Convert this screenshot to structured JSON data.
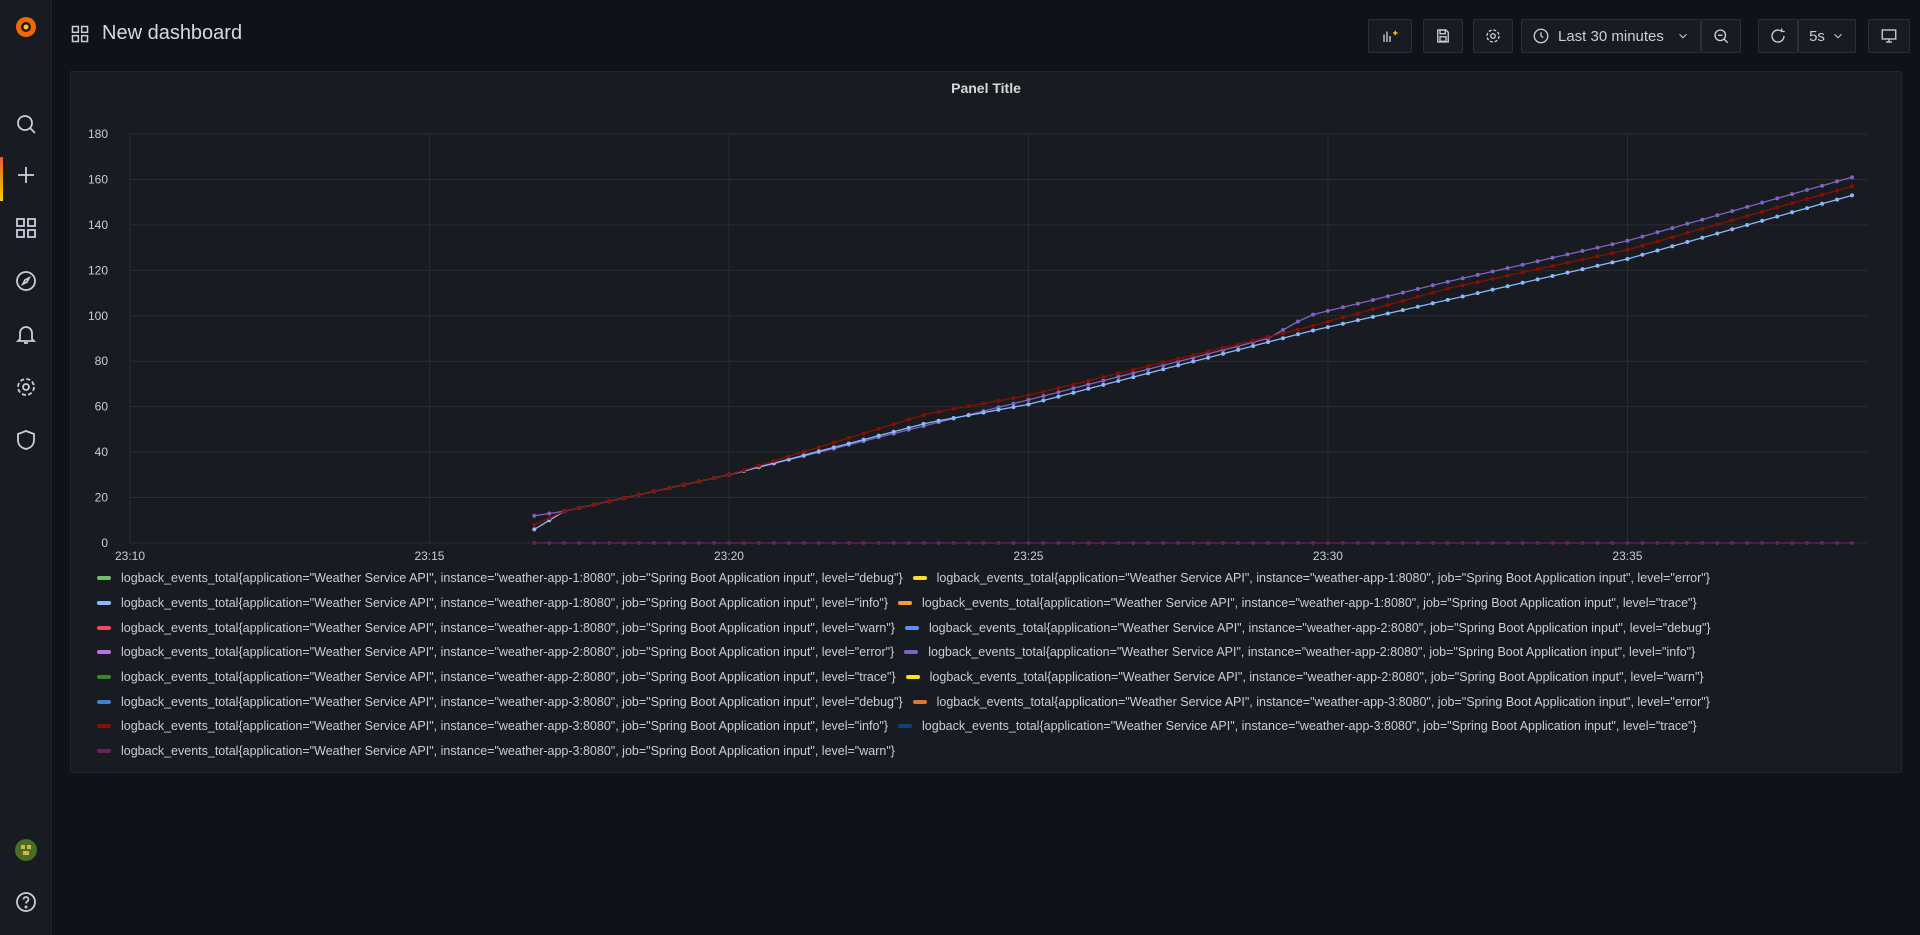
{
  "dashboard": {
    "title": "New dashboard"
  },
  "toolbar": {
    "add_panel_icon": "add-panel-icon",
    "save_icon": "save-icon",
    "settings_icon": "gear-icon",
    "time_range_label": "Last 30 minutes",
    "zoom_out_icon": "zoom-out-icon",
    "refresh_icon": "refresh-icon",
    "refresh_interval": "5s",
    "tv_mode_icon": "monitor-icon"
  },
  "sidebar": {
    "items": [
      {
        "icon": "grafana-logo-icon"
      },
      {
        "icon": "search-icon"
      },
      {
        "icon": "plus-icon",
        "active": true
      },
      {
        "icon": "dashboards-icon"
      },
      {
        "icon": "explore-icon"
      },
      {
        "icon": "bell-icon"
      },
      {
        "icon": "gear-icon"
      },
      {
        "icon": "shield-icon"
      },
      {
        "icon": "avatar"
      },
      {
        "icon": "help-icon"
      }
    ]
  },
  "panel": {
    "title": "Panel Title",
    "legend": [
      {
        "label": "logback_events_total{application=\"Weather Service API\", instance=\"weather-app-1:8080\", job=\"Spring Boot Application input\", level=\"debug\"}",
        "color": "#73bf69"
      },
      {
        "label": "logback_events_total{application=\"Weather Service API\", instance=\"weather-app-1:8080\", job=\"Spring Boot Application input\", level=\"error\"}",
        "color": "#fade2a"
      },
      {
        "label": "logback_events_total{application=\"Weather Service API\", instance=\"weather-app-1:8080\", job=\"Spring Boot Application input\", level=\"info\"}",
        "color": "#8ab8ff"
      },
      {
        "label": "logback_events_total{application=\"Weather Service API\", instance=\"weather-app-1:8080\", job=\"Spring Boot Application input\", level=\"trace\"}",
        "color": "#ff9830"
      },
      {
        "label": "logback_events_total{application=\"Weather Service API\", instance=\"weather-app-1:8080\", job=\"Spring Boot Application input\", level=\"warn\"}",
        "color": "#f2495c"
      },
      {
        "label": "logback_events_total{application=\"Weather Service API\", instance=\"weather-app-2:8080\", job=\"Spring Boot Application input\", level=\"debug\"}",
        "color": "#5794f2"
      },
      {
        "label": "logback_events_total{application=\"Weather Service API\", instance=\"weather-app-2:8080\", job=\"Spring Boot Application input\", level=\"error\"}",
        "color": "#b877d9"
      },
      {
        "label": "logback_events_total{application=\"Weather Service API\", instance=\"weather-app-2:8080\", job=\"Spring Boot Application input\", level=\"info\"}",
        "color": "#7d63c2"
      },
      {
        "label": "logback_events_total{application=\"Weather Service API\", instance=\"weather-app-2:8080\", job=\"Spring Boot Application input\", level=\"trace\"}",
        "color": "#37872d"
      },
      {
        "label": "logback_events_total{application=\"Weather Service API\", instance=\"weather-app-2:8080\", job=\"Spring Boot Application input\", level=\"warn\"}",
        "color": "#fade2a"
      },
      {
        "label": "logback_events_total{application=\"Weather Service API\", instance=\"weather-app-3:8080\", job=\"Spring Boot Application input\", level=\"debug\"}",
        "color": "#3f7fd3"
      },
      {
        "label": "logback_events_total{application=\"Weather Service API\", instance=\"weather-app-3:8080\", job=\"Spring Boot Application input\", level=\"error\"}",
        "color": "#e0752d"
      },
      {
        "label": "logback_events_total{application=\"Weather Service API\", instance=\"weather-app-3:8080\", job=\"Spring Boot Application input\", level=\"info\"}",
        "color": "#890f02"
      },
      {
        "label": "logback_events_total{application=\"Weather Service API\", instance=\"weather-app-3:8080\", job=\"Spring Boot Application input\", level=\"trace\"}",
        "color": "#0a437c"
      },
      {
        "label": "logback_events_total{application=\"Weather Service API\", instance=\"weather-app-3:8080\", job=\"Spring Boot Application input\", level=\"warn\"}",
        "color": "#6d1f62"
      }
    ]
  },
  "chart_data": {
    "type": "line",
    "title": "Panel Title",
    "xlabel": "",
    "ylabel": "",
    "x_ticks": [
      "23:10",
      "23:15",
      "23:20",
      "23:25",
      "23:30",
      "23:35"
    ],
    "y_ticks": [
      0,
      20,
      40,
      60,
      80,
      100,
      120,
      140,
      160,
      180
    ],
    "ylim": [
      0,
      180
    ],
    "xlim": [
      "23:10",
      "23:39"
    ],
    "grid": true,
    "legend_position": "bottom",
    "series": [
      {
        "name": "logback_events_total{application=\"Weather Service API\", instance=\"weather-app-2:8080\", job=\"Spring Boot Application input\", level=\"info\"}",
        "color": "#7d63c2",
        "points": [
          [
            "23:16:45",
            12
          ],
          [
            "23:17:00",
            13
          ],
          [
            "23:17:15",
            14
          ],
          [
            "23:20:00",
            30
          ],
          [
            "23:25:00",
            63
          ],
          [
            "23:29:00",
            90
          ],
          [
            "23:29:40",
            100
          ],
          [
            "23:32:00",
            115
          ],
          [
            "23:35:00",
            133
          ],
          [
            "23:38:45",
            161
          ]
        ]
      },
      {
        "name": "logback_events_total{application=\"Weather Service API\", instance=\"weather-app-1:8080\", job=\"Spring Boot Application input\", level=\"info\"}",
        "color": "#8ab8ff",
        "points": [
          [
            "23:16:45",
            6
          ],
          [
            "23:17:15",
            14
          ],
          [
            "23:20:00",
            30
          ],
          [
            "23:23:20",
            53
          ],
          [
            "23:25:00",
            61
          ],
          [
            "23:29:40",
            93
          ],
          [
            "23:32:00",
            107
          ],
          [
            "23:35:00",
            125
          ],
          [
            "23:38:45",
            153
          ]
        ]
      },
      {
        "name": "logback_events_total{application=\"Weather Service API\", instance=\"weather-app-3:8080\", job=\"Spring Boot Application input\", level=\"info\"}",
        "color": "#890f02",
        "points": [
          [
            "23:16:45",
            8
          ],
          [
            "23:17:15",
            14
          ],
          [
            "23:20:00",
            30
          ],
          [
            "23:23:20",
            57
          ],
          [
            "23:25:00",
            65
          ],
          [
            "23:29:40",
            95
          ],
          [
            "23:32:00",
            112
          ],
          [
            "23:35:00",
            129
          ],
          [
            "23:38:45",
            157
          ]
        ]
      },
      {
        "name": "logback_events_total{application=\"Weather Service API\", instance=\"weather-app-3:8080\", job=\"Spring Boot Application input\", level=\"warn\"}",
        "color": "#6d1f62",
        "points": [
          [
            "23:16:45",
            0
          ],
          [
            "23:38:45",
            0
          ]
        ]
      }
    ]
  }
}
